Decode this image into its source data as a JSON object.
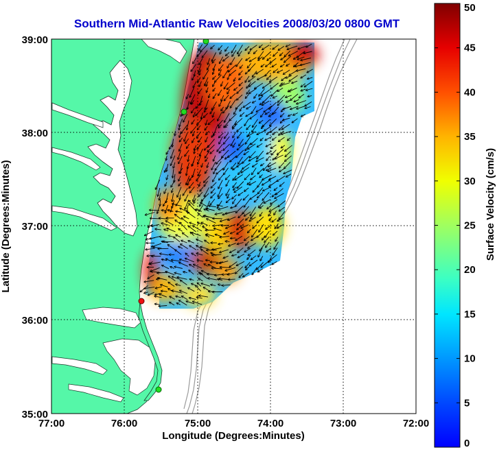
{
  "title": "Southern Mid-Atlantic Raw Velocities 2008/03/20 0800 GMT",
  "xlabel": "Longitude (Degrees:Minutes)",
  "ylabel": "Latitude (Degrees:Minutes)",
  "colorbar_label": "Surface Velocity (cm/s)",
  "x_ticks": [
    "77:00",
    "76:00",
    "75:00",
    "74:00",
    "73:00",
    "72:00"
  ],
  "y_ticks": [
    "39:00",
    "38:00",
    "37:00",
    "36:00",
    "35:00"
  ],
  "colorbar_ticks": [
    "0",
    "5",
    "10",
    "15",
    "20",
    "25",
    "30",
    "35",
    "40",
    "45",
    "50"
  ],
  "colors": {
    "title": "#0000cc",
    "land": "#55f7a8",
    "water": "#ffffff",
    "grid": "#000000",
    "bathymetry": "#9a9a9a",
    "arrows": "#000000",
    "station_green": "#22dd22",
    "station_red": "#ee1111"
  },
  "chart_data": {
    "type": "heatmap",
    "xlim": [
      -77,
      -72
    ],
    "ylim": [
      35,
      39
    ],
    "clim": [
      0,
      50
    ],
    "units": "cm/s",
    "colormap": "jet",
    "grid": true
  }
}
